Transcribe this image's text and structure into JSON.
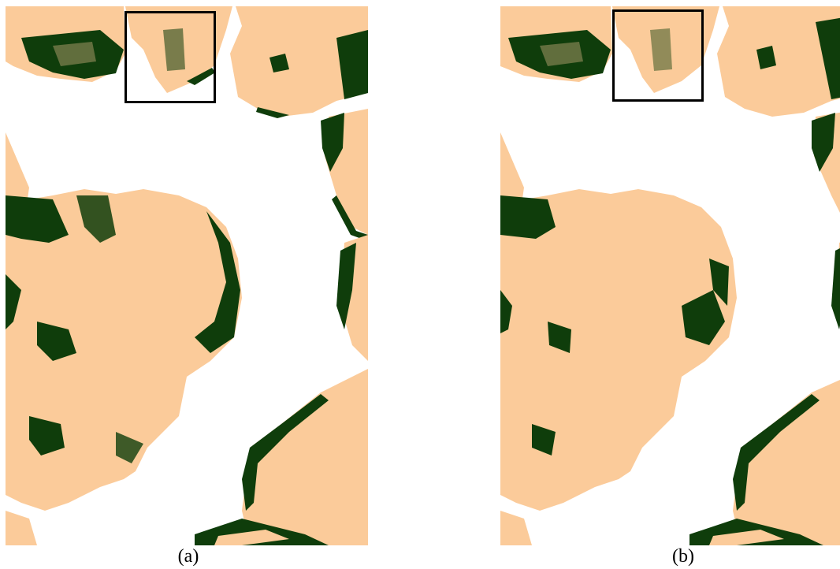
{
  "figure": {
    "panels": [
      {
        "id": "a",
        "caption": "(a)"
      },
      {
        "id": "b",
        "caption": "(b)"
      }
    ],
    "colors": {
      "background": "#ffffff",
      "land": "#fbcb9a",
      "vegetation": "#0f3d0b",
      "frame": "#000000"
    }
  }
}
